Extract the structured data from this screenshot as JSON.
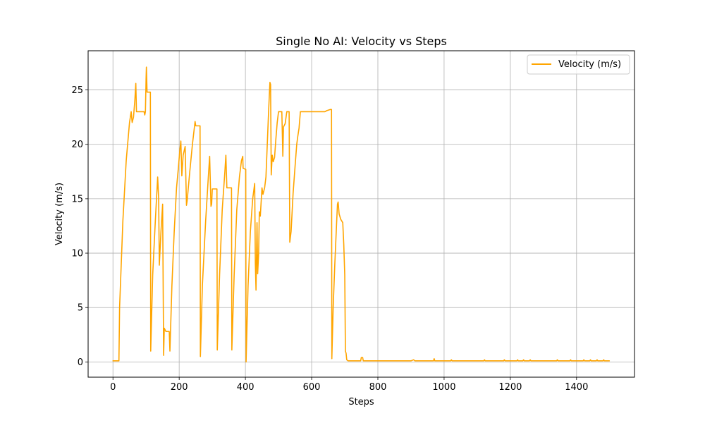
{
  "chart_data": {
    "type": "line",
    "title": "Single No AI: Velocity vs Steps",
    "xlabel": "Steps",
    "ylabel": "Velocity (m/s)",
    "xlim": [
      -75,
      1575
    ],
    "ylim": [
      -1.4,
      28.6
    ],
    "xticks": [
      0,
      200,
      400,
      600,
      800,
      1000,
      1200,
      1400
    ],
    "yticks": [
      0,
      5,
      10,
      15,
      20,
      25
    ],
    "grid": true,
    "legend_position": "top-right",
    "line_color": "#ffa500",
    "series": [
      {
        "name": "Velocity (m/s)",
        "color": "#ffa500",
        "points": [
          [
            0,
            0.1
          ],
          [
            18,
            0.1
          ],
          [
            20,
            5
          ],
          [
            30,
            13
          ],
          [
            40,
            18.5
          ],
          [
            50,
            22
          ],
          [
            55,
            23
          ],
          [
            58,
            22
          ],
          [
            62,
            22.5
          ],
          [
            66,
            24
          ],
          [
            69,
            25.6
          ],
          [
            71,
            23
          ],
          [
            78,
            23
          ],
          [
            86,
            23
          ],
          [
            94,
            23
          ],
          [
            96,
            22.7
          ],
          [
            98,
            23
          ],
          [
            100,
            26
          ],
          [
            101,
            27.1
          ],
          [
            103,
            24.8
          ],
          [
            113,
            24.8
          ],
          [
            114,
            1
          ],
          [
            120,
            8
          ],
          [
            128,
            13
          ],
          [
            135,
            17
          ],
          [
            138,
            15
          ],
          [
            140,
            8.9
          ],
          [
            145,
            12
          ],
          [
            150,
            14.5
          ],
          [
            153,
            0.6
          ],
          [
            155,
            3.1
          ],
          [
            160,
            2.8
          ],
          [
            170,
            2.8
          ],
          [
            172,
            1
          ],
          [
            178,
            7
          ],
          [
            185,
            12
          ],
          [
            192,
            16
          ],
          [
            198,
            18
          ],
          [
            202,
            19.5
          ],
          [
            205,
            20.3
          ],
          [
            208,
            17.1
          ],
          [
            212,
            19
          ],
          [
            218,
            19.8
          ],
          [
            222,
            14.4
          ],
          [
            224,
            14.8
          ],
          [
            232,
            17.5
          ],
          [
            240,
            20
          ],
          [
            248,
            22.1
          ],
          [
            250,
            21.7
          ],
          [
            263,
            21.7
          ],
          [
            264,
            0.5
          ],
          [
            270,
            7
          ],
          [
            280,
            13
          ],
          [
            288,
            17
          ],
          [
            292,
            18.9
          ],
          [
            296,
            14.3
          ],
          [
            298,
            14.5
          ],
          [
            300,
            15.9
          ],
          [
            304,
            15.9
          ],
          [
            314,
            15.9
          ],
          [
            315,
            1.1
          ],
          [
            322,
            8
          ],
          [
            330,
            14
          ],
          [
            338,
            17.5
          ],
          [
            341,
            19
          ],
          [
            344,
            16
          ],
          [
            358,
            16
          ],
          [
            359,
            1.1
          ],
          [
            366,
            8
          ],
          [
            374,
            14
          ],
          [
            382,
            17
          ],
          [
            388,
            18.5
          ],
          [
            392,
            18.9
          ],
          [
            393,
            17.8
          ],
          [
            401,
            17.7
          ],
          [
            402,
            0
          ],
          [
            408,
            7
          ],
          [
            415,
            12
          ],
          [
            422,
            15
          ],
          [
            428,
            16.4
          ],
          [
            430,
            9
          ],
          [
            432,
            6.6
          ],
          [
            435,
            12.8
          ],
          [
            437,
            8.1
          ],
          [
            440,
            10
          ],
          [
            442,
            13.8
          ],
          [
            445,
            13.4
          ],
          [
            450,
            16
          ],
          [
            453,
            15.4
          ],
          [
            458,
            16
          ],
          [
            462,
            17
          ],
          [
            466,
            20
          ],
          [
            470,
            23
          ],
          [
            474,
            25.7
          ],
          [
            476,
            25.5
          ],
          [
            478,
            17.2
          ],
          [
            481,
            19
          ],
          [
            484,
            18.4
          ],
          [
            488,
            18.8
          ],
          [
            492,
            20.5
          ],
          [
            496,
            22
          ],
          [
            500,
            23
          ],
          [
            510,
            23
          ],
          [
            513,
            18.9
          ],
          [
            515,
            21.6
          ],
          [
            520,
            21.9
          ],
          [
            525,
            23
          ],
          [
            532,
            23
          ],
          [
            534,
            11
          ],
          [
            538,
            12
          ],
          [
            544,
            15.5
          ],
          [
            550,
            18
          ],
          [
            555,
            20
          ],
          [
            558,
            20.7
          ],
          [
            562,
            21.5
          ],
          [
            566,
            23
          ],
          [
            580,
            23
          ],
          [
            600,
            23
          ],
          [
            620,
            23
          ],
          [
            640,
            23
          ],
          [
            646,
            23.1
          ],
          [
            656,
            23.2
          ],
          [
            660,
            23.2
          ],
          [
            661,
            0.3
          ],
          [
            665,
            5
          ],
          [
            670,
            9
          ],
          [
            675,
            12.5
          ],
          [
            678,
            14.5
          ],
          [
            680,
            14.7
          ],
          [
            683,
            13.6
          ],
          [
            688,
            13.1
          ],
          [
            694,
            12.8
          ],
          [
            697,
            10.8
          ],
          [
            700,
            8
          ],
          [
            702,
            1
          ],
          [
            704,
            0.8
          ],
          [
            706,
            0.2
          ],
          [
            710,
            0.1
          ],
          [
            740,
            0.1
          ],
          [
            748,
            0.1
          ],
          [
            750,
            0.4
          ],
          [
            754,
            0.4
          ],
          [
            756,
            0.1
          ],
          [
            800,
            0.1
          ],
          [
            850,
            0.1
          ],
          [
            900,
            0.1
          ],
          [
            908,
            0.2
          ],
          [
            912,
            0.1
          ],
          [
            968,
            0.1
          ],
          [
            970,
            0.3
          ],
          [
            972,
            0.1
          ],
          [
            1000,
            0.1
          ],
          [
            1020,
            0.1
          ],
          [
            1022,
            0.2
          ],
          [
            1024,
            0.1
          ],
          [
            1100,
            0.1
          ],
          [
            1120,
            0.1
          ],
          [
            1122,
            0.2
          ],
          [
            1124,
            0.1
          ],
          [
            1180,
            0.1
          ],
          [
            1182,
            0.2
          ],
          [
            1184,
            0.1
          ],
          [
            1220,
            0.1
          ],
          [
            1222,
            0.2
          ],
          [
            1224,
            0.1
          ],
          [
            1238,
            0.1
          ],
          [
            1240,
            0.2
          ],
          [
            1242,
            0.1
          ],
          [
            1258,
            0.1
          ],
          [
            1260,
            0.2
          ],
          [
            1262,
            0.1
          ],
          [
            1300,
            0.1
          ],
          [
            1340,
            0.1
          ],
          [
            1342,
            0.2
          ],
          [
            1344,
            0.1
          ],
          [
            1380,
            0.1
          ],
          [
            1382,
            0.2
          ],
          [
            1384,
            0.1
          ],
          [
            1420,
            0.1
          ],
          [
            1422,
            0.2
          ],
          [
            1424,
            0.1
          ],
          [
            1440,
            0.1
          ],
          [
            1442,
            0.2
          ],
          [
            1444,
            0.1
          ],
          [
            1460,
            0.1
          ],
          [
            1462,
            0.2
          ],
          [
            1464,
            0.1
          ],
          [
            1480,
            0.1
          ],
          [
            1482,
            0.2
          ],
          [
            1484,
            0.1
          ],
          [
            1499,
            0.1
          ]
        ]
      }
    ]
  }
}
